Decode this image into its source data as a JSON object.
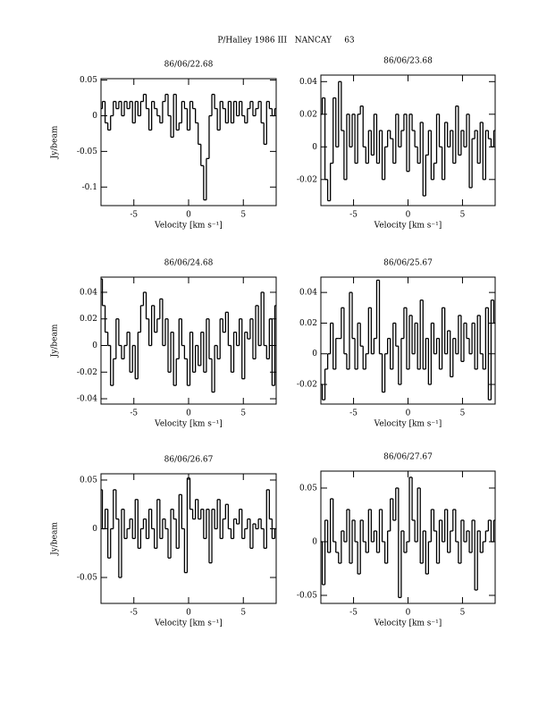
{
  "page_title": "P/Halley 1986 III   NANCAY     63",
  "chart_data": [
    {
      "type": "line",
      "title": "86/06/22.68",
      "x_label": "Velocity [km s⁻¹]",
      "y_label": "Jy/beam",
      "x": [
        -8,
        -7.75,
        -7.5,
        -7.25,
        -7,
        -6.75,
        -6.5,
        -6.25,
        -6,
        -5.75,
        -5.5,
        -5.25,
        -5,
        -4.75,
        -4.5,
        -4.25,
        -4,
        -3.75,
        -3.5,
        -3.25,
        -3,
        -2.75,
        -2.5,
        -2.25,
        -2,
        -1.75,
        -1.5,
        -1.25,
        -1,
        -0.75,
        -0.5,
        -0.25,
        0,
        0.25,
        0.5,
        0.75,
        1,
        1.25,
        1.5,
        1.75,
        2,
        2.25,
        2.5,
        2.75,
        3,
        3.25,
        3.5,
        3.75,
        4,
        4.25,
        4.5,
        4.75,
        5,
        5.25,
        5.5,
        5.75,
        6,
        6.25,
        6.5,
        6.75,
        7,
        7.25,
        7.5,
        7.75,
        8
      ],
      "values": [
        0.01,
        0.02,
        -0.01,
        -0.02,
        0.0,
        0.02,
        0.01,
        0.02,
        0.0,
        0.02,
        0.01,
        0.02,
        -0.01,
        0.02,
        0.0,
        0.02,
        0.03,
        0.01,
        -0.02,
        0.02,
        0.01,
        0.0,
        -0.01,
        0.02,
        0.03,
        0.0,
        -0.03,
        0.03,
        -0.02,
        -0.01,
        0.02,
        0.01,
        -0.02,
        0.02,
        0.01,
        -0.01,
        -0.04,
        -0.07,
        -0.118,
        -0.06,
        0.0,
        0.03,
        0.01,
        -0.02,
        0.02,
        0.01,
        -0.01,
        0.02,
        -0.01,
        0.02,
        0.0,
        0.02,
        0.0,
        -0.01,
        0.01,
        0.02,
        0.0,
        0.01,
        0.02,
        -0.01,
        -0.04,
        0.02,
        0.01,
        0.0,
        0.01
      ],
      "xlim": [
        -8,
        8
      ],
      "ylim": [
        -0.126,
        0.052
      ],
      "xticks": [
        -5,
        0,
        5
      ],
      "yticks": [
        -0.1,
        -0.05,
        0,
        0.05
      ]
    },
    {
      "type": "line",
      "title": "86/06/23.68",
      "x_label": "Velocity [km s⁻¹]",
      "x": [
        -8,
        -7.75,
        -7.5,
        -7.25,
        -7,
        -6.75,
        -6.5,
        -6.25,
        -6,
        -5.75,
        -5.5,
        -5.25,
        -5,
        -4.75,
        -4.5,
        -4.25,
        -4,
        -3.75,
        -3.5,
        -3.25,
        -3,
        -2.75,
        -2.5,
        -2.25,
        -2,
        -1.75,
        -1.5,
        -1.25,
        -1,
        -0.75,
        -0.5,
        -0.25,
        0,
        0.25,
        0.5,
        0.75,
        1,
        1.25,
        1.5,
        1.75,
        2,
        2.25,
        2.5,
        2.75,
        3,
        3.25,
        3.5,
        3.75,
        4,
        4.25,
        4.5,
        4.75,
        5,
        5.25,
        5.5,
        5.75,
        6,
        6.25,
        6.5,
        6.75,
        7,
        7.25,
        7.5,
        7.75,
        8
      ],
      "values": [
        0.02,
        0.03,
        -0.02,
        -0.033,
        -0.01,
        0.03,
        0.0,
        0.04,
        0.01,
        -0.02,
        0.02,
        0.0,
        0.02,
        -0.01,
        0.02,
        0.025,
        0.0,
        -0.01,
        0.01,
        -0.005,
        0.02,
        -0.01,
        0.01,
        -0.02,
        0.0,
        0.01,
        0.005,
        -0.01,
        0.02,
        0.0,
        0.01,
        0.02,
        -0.015,
        0.02,
        0.01,
        0.0,
        -0.01,
        0.015,
        -0.03,
        -0.005,
        0.01,
        -0.02,
        -0.01,
        0.02,
        0.0,
        -0.02,
        0.015,
        0.0,
        0.01,
        -0.01,
        0.025,
        -0.005,
        0.01,
        0.0,
        0.02,
        -0.025,
        0.005,
        0.01,
        -0.01,
        0.015,
        -0.02,
        0.01,
        0.005,
        0.0,
        0.01
      ],
      "xlim": [
        -8,
        8
      ],
      "ylim": [
        -0.036,
        0.044
      ],
      "xticks": [
        -5,
        0,
        5
      ],
      "yticks": [
        -0.02,
        0,
        0.02,
        0.04
      ]
    },
    {
      "type": "line",
      "title": "86/06/24.68",
      "x_label": "Velocity [km s⁻¹]",
      "y_label": "Jy/beam",
      "x": [
        -8,
        -7.75,
        -7.5,
        -7.25,
        -7,
        -6.75,
        -6.5,
        -6.25,
        -6,
        -5.75,
        -5.5,
        -5.25,
        -5,
        -4.75,
        -4.5,
        -4.25,
        -4,
        -3.75,
        -3.5,
        -3.25,
        -3,
        -2.75,
        -2.5,
        -2.25,
        -2,
        -1.75,
        -1.5,
        -1.25,
        -1,
        -0.75,
        -0.5,
        -0.25,
        0,
        0.25,
        0.5,
        0.75,
        1,
        1.25,
        1.5,
        1.75,
        2,
        2.25,
        2.5,
        2.75,
        3,
        3.25,
        3.5,
        3.75,
        4,
        4.25,
        4.5,
        4.75,
        5,
        5.25,
        5.5,
        5.75,
        6,
        6.25,
        6.5,
        6.75,
        7,
        7.25,
        7.5,
        7.75,
        8
      ],
      "values": [
        0.05,
        0.03,
        0.01,
        0.0,
        -0.03,
        -0.01,
        0.02,
        0.0,
        -0.01,
        0.0,
        0.01,
        -0.02,
        0.0,
        -0.025,
        0.01,
        0.03,
        0.04,
        0.02,
        0.0,
        0.03,
        0.01,
        0.02,
        0.035,
        0.0,
        0.02,
        -0.02,
        0.01,
        -0.03,
        -0.01,
        0.02,
        0.0,
        -0.01,
        -0.03,
        0.01,
        -0.02,
        0.0,
        -0.015,
        0.01,
        -0.02,
        0.02,
        -0.01,
        -0.035,
        0.0,
        -0.01,
        0.02,
        0.01,
        0.025,
        0.0,
        -0.02,
        0.01,
        0.0,
        0.02,
        -0.025,
        0.01,
        0.005,
        0.02,
        -0.01,
        0.03,
        0.0,
        0.04,
        0.0,
        -0.01,
        0.02,
        -0.03,
        0.03
      ],
      "xlim": [
        -8,
        8
      ],
      "ylim": [
        -0.044,
        0.0514
      ],
      "xticks": [
        -5,
        0,
        5
      ],
      "yticks": [
        -0.04,
        -0.02,
        0,
        0.02,
        0.04
      ]
    },
    {
      "type": "line",
      "title": "86/06/25.67",
      "x_label": "Velocity [km s⁻¹]",
      "x": [
        -8,
        -7.75,
        -7.5,
        -7.25,
        -7,
        -6.75,
        -6.5,
        -6.25,
        -6,
        -5.75,
        -5.5,
        -5.25,
        -5,
        -4.75,
        -4.5,
        -4.25,
        -4,
        -3.75,
        -3.5,
        -3.25,
        -3,
        -2.75,
        -2.5,
        -2.25,
        -2,
        -1.75,
        -1.5,
        -1.25,
        -1,
        -0.75,
        -0.5,
        -0.25,
        0,
        0.25,
        0.5,
        0.75,
        1,
        1.25,
        1.5,
        1.75,
        2,
        2.25,
        2.5,
        2.75,
        3,
        3.25,
        3.5,
        3.75,
        4,
        4.25,
        4.5,
        4.75,
        5,
        5.25,
        5.5,
        5.75,
        6,
        6.25,
        6.5,
        6.75,
        7,
        7.25,
        7.5,
        7.75,
        8
      ],
      "values": [
        -0.02,
        -0.03,
        -0.01,
        0.0,
        0.02,
        -0.01,
        0.01,
        0.01,
        0.03,
        0.0,
        -0.01,
        0.04,
        0.01,
        -0.01,
        0.02,
        0.005,
        -0.01,
        0.0,
        0.03,
        0.0,
        0.01,
        0.048,
        0.0,
        -0.025,
        0.0,
        0.01,
        -0.01,
        0.02,
        0.005,
        -0.02,
        0.01,
        0.03,
        -0.01,
        0.025,
        0.0,
        0.02,
        -0.01,
        0.035,
        -0.01,
        0.01,
        -0.02,
        0.02,
        0.0,
        0.01,
        -0.01,
        0.03,
        0.0,
        0.015,
        -0.015,
        0.01,
        0.0,
        0.025,
        -0.005,
        0.02,
        0.01,
        0.0,
        0.02,
        -0.01,
        0.025,
        0.0,
        -0.01,
        0.03,
        -0.03,
        0.035,
        0.02
      ],
      "xlim": [
        -8,
        8
      ],
      "ylim": [
        -0.0328,
        0.05
      ],
      "xticks": [
        -5,
        0,
        5
      ],
      "yticks": [
        -0.02,
        0,
        0.02,
        0.04
      ]
    },
    {
      "type": "line",
      "title": "86/06/26.67",
      "x_label": "Velocity [km s⁻¹]",
      "y_label": "Jy/beam",
      "x": [
        -8,
        -7.75,
        -7.5,
        -7.25,
        -7,
        -6.75,
        -6.5,
        -6.25,
        -6,
        -5.75,
        -5.5,
        -5.25,
        -5,
        -4.75,
        -4.5,
        -4.25,
        -4,
        -3.75,
        -3.5,
        -3.25,
        -3,
        -2.75,
        -2.5,
        -2.25,
        -2,
        -1.75,
        -1.5,
        -1.25,
        -1,
        -0.75,
        -0.5,
        -0.25,
        0,
        0.25,
        0.5,
        0.75,
        1,
        1.25,
        1.5,
        1.75,
        2,
        2.25,
        2.5,
        2.75,
        3,
        3.25,
        3.5,
        3.75,
        4,
        4.25,
        4.5,
        4.75,
        5,
        5.25,
        5.5,
        5.75,
        6,
        6.25,
        6.5,
        6.75,
        7,
        7.25,
        7.5,
        7.75,
        8
      ],
      "values": [
        0.04,
        0.0,
        0.02,
        -0.03,
        0.0,
        0.04,
        0.01,
        -0.05,
        0.02,
        -0.01,
        0.0,
        0.01,
        -0.01,
        0.03,
        -0.02,
        0.0,
        0.01,
        -0.01,
        0.02,
        0.0,
        -0.02,
        0.03,
        -0.01,
        0.01,
        0.0,
        -0.03,
        0.02,
        0.01,
        -0.02,
        0.035,
        0.0,
        -0.045,
        0.052,
        0.02,
        0.01,
        0.03,
        0.01,
        0.02,
        -0.01,
        0.02,
        -0.035,
        0.02,
        0.0,
        0.03,
        -0.01,
        0.01,
        0.025,
        0.0,
        -0.01,
        0.01,
        0.005,
        0.02,
        -0.01,
        0.0,
        0.01,
        -0.02,
        0.005,
        0.0,
        0.01,
        0.0,
        -0.02,
        0.04,
        0.01,
        -0.01,
        0.0
      ],
      "xlim": [
        -8,
        8
      ],
      "ylim": [
        -0.0766,
        0.0564
      ],
      "xticks": [
        -5,
        0,
        5
      ],
      "yticks": [
        -0.05,
        0,
        0.05
      ]
    },
    {
      "type": "line",
      "title": "86/06/27.67",
      "x_label": "Velocity [km s⁻¹]",
      "x": [
        -8,
        -7.75,
        -7.5,
        -7.25,
        -7,
        -6.75,
        -6.5,
        -6.25,
        -6,
        -5.75,
        -5.5,
        -5.25,
        -5,
        -4.75,
        -4.5,
        -4.25,
        -4,
        -3.75,
        -3.5,
        -3.25,
        -3,
        -2.75,
        -2.5,
        -2.25,
        -2,
        -1.75,
        -1.5,
        -1.25,
        -1,
        -0.75,
        -0.5,
        -0.25,
        0,
        0.25,
        0.5,
        0.75,
        1,
        1.25,
        1.5,
        1.75,
        2,
        2.25,
        2.5,
        2.75,
        3,
        3.25,
        3.5,
        3.75,
        4,
        4.25,
        4.5,
        4.75,
        5,
        5.25,
        5.5,
        5.75,
        6,
        6.25,
        6.5,
        6.75,
        7,
        7.25,
        7.5,
        7.75,
        8
      ],
      "values": [
        0.0,
        -0.04,
        0.02,
        -0.01,
        0.04,
        0.0,
        -0.01,
        -0.02,
        0.01,
        0.0,
        0.03,
        -0.02,
        0.02,
        0.0,
        -0.03,
        0.02,
        0.0,
        -0.01,
        0.03,
        0.0,
        0.01,
        -0.01,
        0.03,
        0.0,
        -0.02,
        0.01,
        0.04,
        0.02,
        0.05,
        -0.052,
        0.01,
        -0.01,
        0.0,
        0.06,
        0.02,
        0.0,
        0.05,
        -0.02,
        0.01,
        -0.03,
        0.0,
        0.03,
        0.01,
        -0.02,
        0.02,
        0.0,
        0.03,
        -0.01,
        0.01,
        0.03,
        0.0,
        -0.02,
        0.02,
        0.0,
        0.01,
        -0.01,
        0.02,
        -0.045,
        0.01,
        -0.01,
        0.0,
        0.01,
        0.02,
        0.0,
        0.02
      ],
      "xlim": [
        -8,
        8
      ],
      "ylim": [
        -0.0575,
        0.0658
      ],
      "xticks": [
        -5,
        0,
        5
      ],
      "yticks": [
        -0.05,
        0,
        0.05
      ]
    }
  ]
}
